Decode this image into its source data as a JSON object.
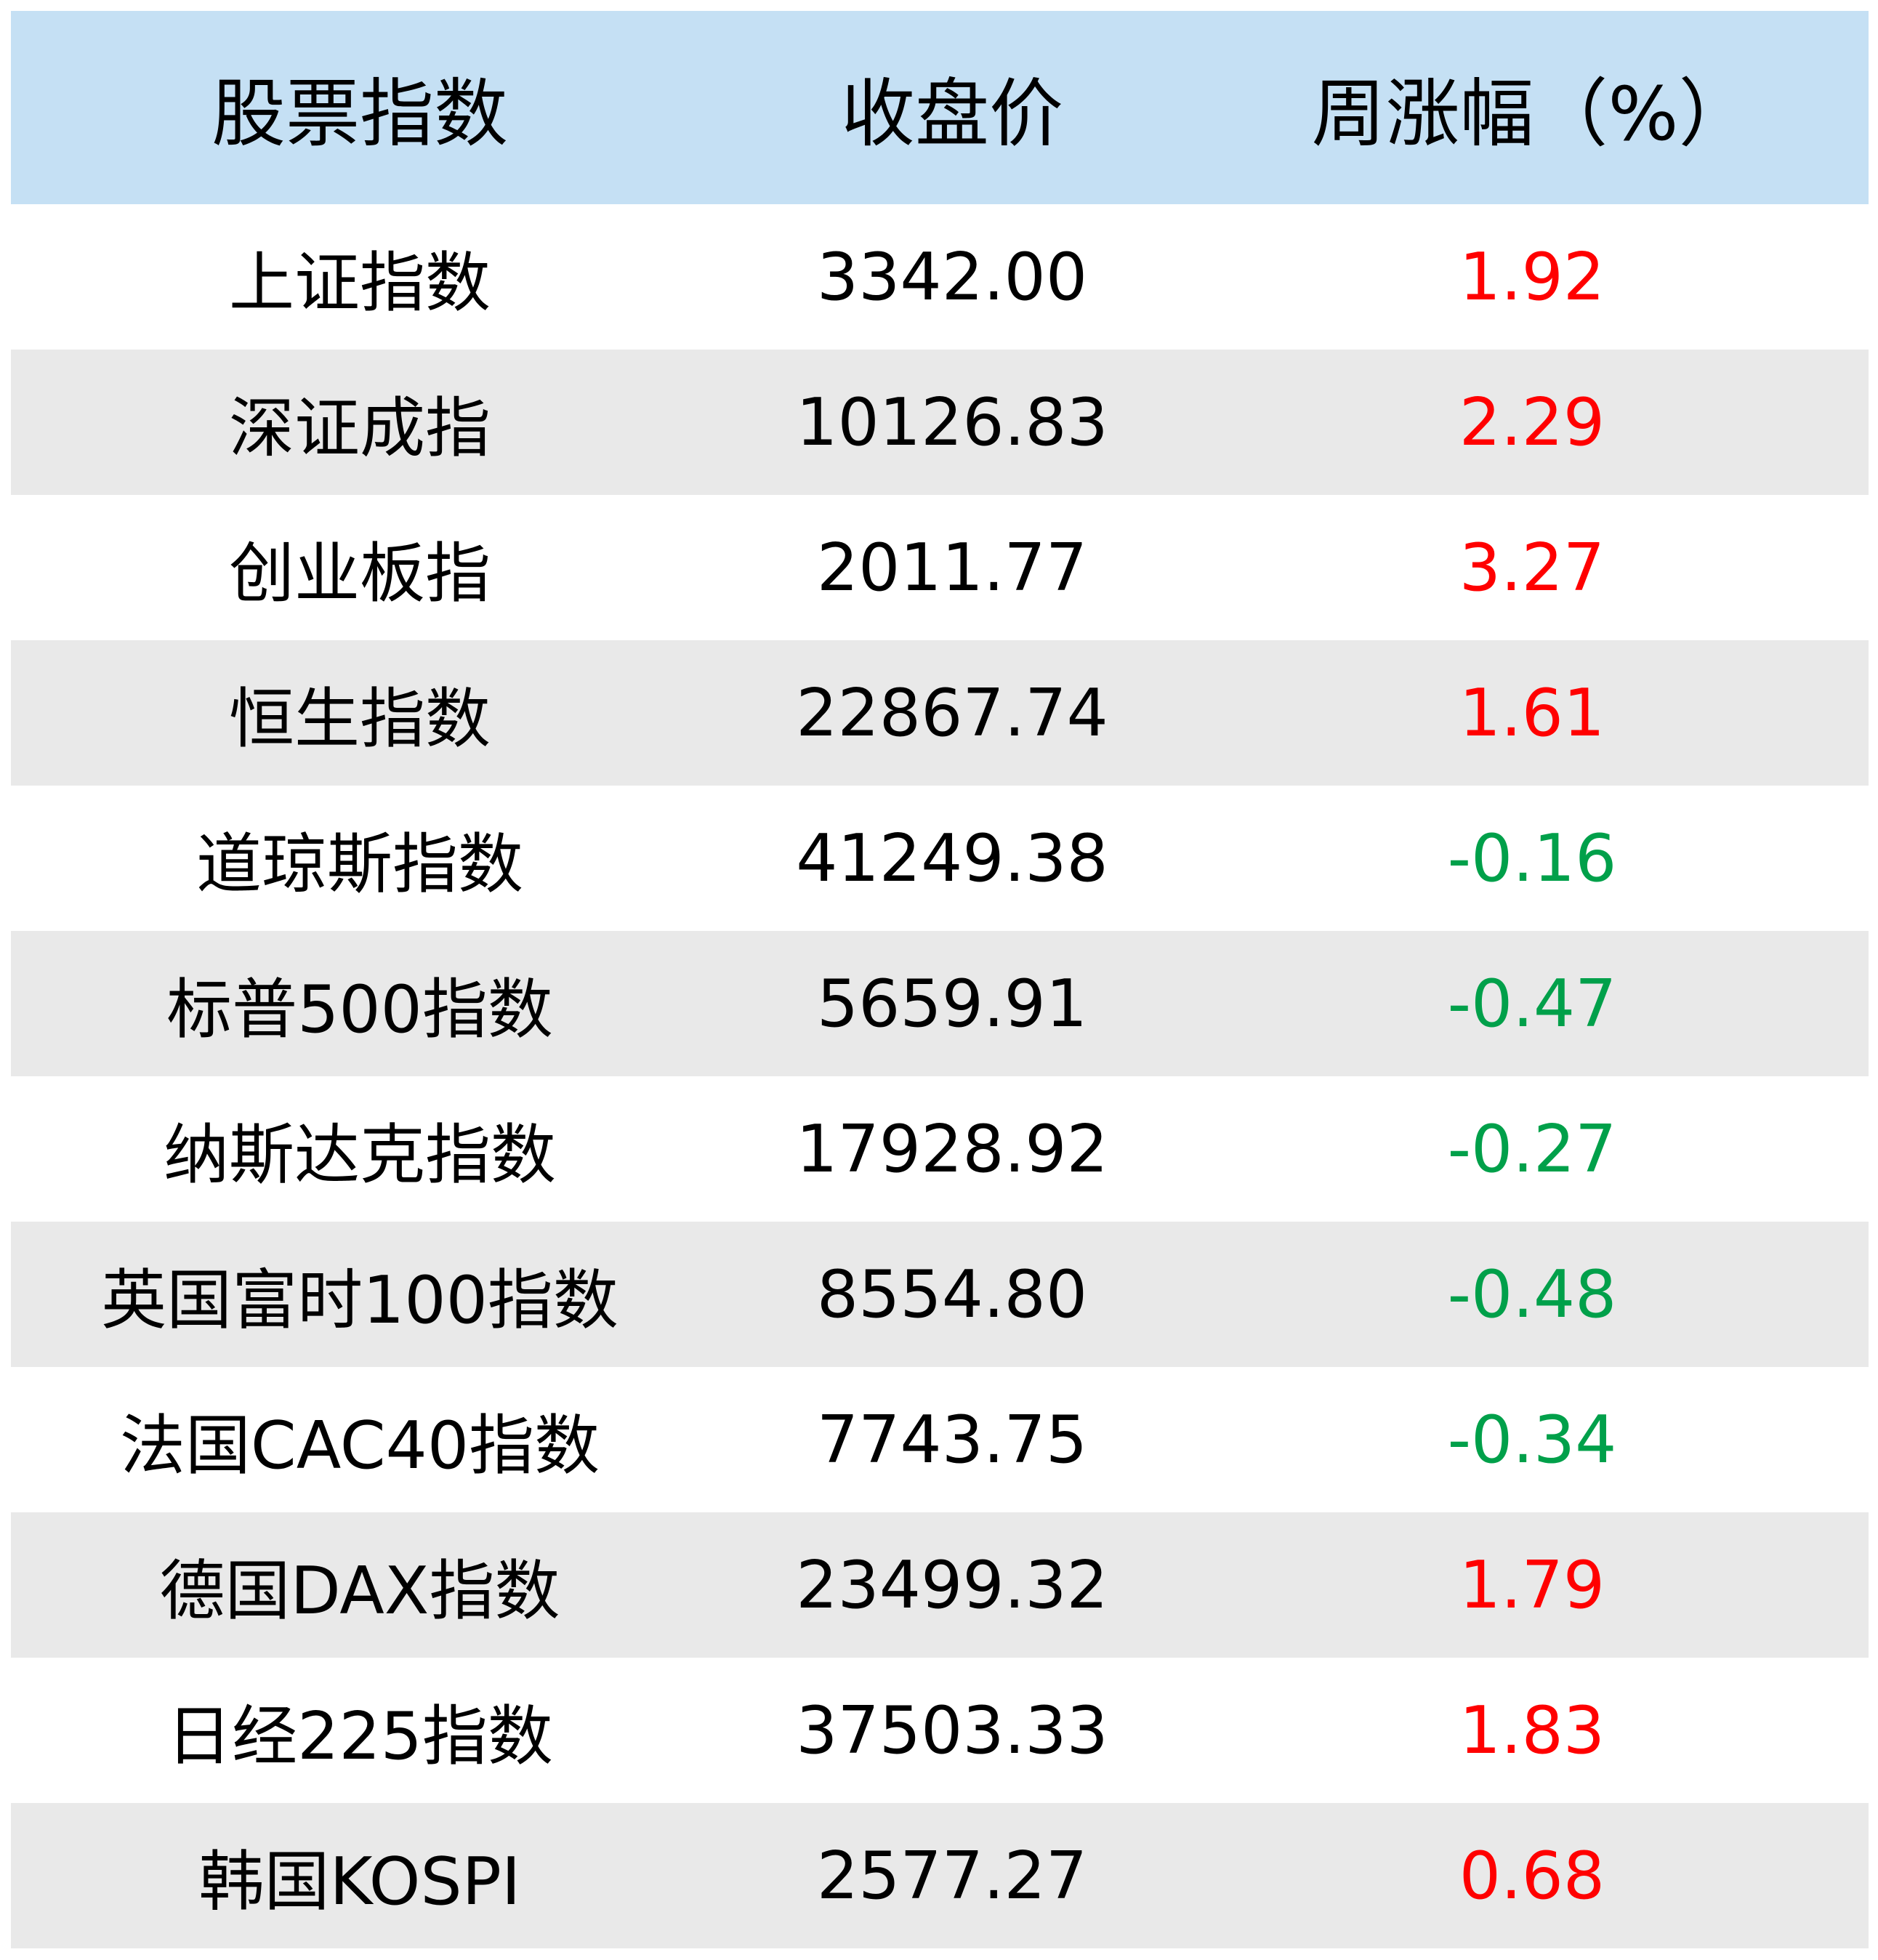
{
  "table": {
    "headers": [
      "股票指数",
      "收盘价",
      "周涨幅（%）"
    ],
    "rows": [
      {
        "name": "上证指数",
        "close": "3342.00",
        "change": "1.92",
        "trend": "up"
      },
      {
        "name": "深证成指",
        "close": "10126.83",
        "change": "2.29",
        "trend": "up"
      },
      {
        "name": "创业板指",
        "close": "2011.77",
        "change": "3.27",
        "trend": "up"
      },
      {
        "name": "恒生指数",
        "close": "22867.74",
        "change": "1.61",
        "trend": "up"
      },
      {
        "name": "道琼斯指数",
        "close": "41249.38",
        "change": "-0.16",
        "trend": "down"
      },
      {
        "name": "标普500指数",
        "close": "5659.91",
        "change": "-0.47",
        "trend": "down"
      },
      {
        "name": "纳斯达克指数",
        "close": "17928.92",
        "change": "-0.27",
        "trend": "down"
      },
      {
        "name": "英国富时100指数",
        "close": "8554.80",
        "change": "-0.48",
        "trend": "down"
      },
      {
        "name": "法国CAC40指数",
        "close": "7743.75",
        "change": "-0.34",
        "trend": "down"
      },
      {
        "name": "德国DAX指数",
        "close": "23499.32",
        "change": "1.79",
        "trend": "up"
      },
      {
        "name": "日经225指数",
        "close": "37503.33",
        "change": "1.83",
        "trend": "up"
      },
      {
        "name": "韩国KOSPI",
        "close": "2577.27",
        "change": "0.68",
        "trend": "up"
      }
    ]
  },
  "colors": {
    "header_bg": "#c5e0f4",
    "row_alt_bg": "#e9e9e9",
    "up": "#ff0000",
    "down": "#00a04a"
  }
}
